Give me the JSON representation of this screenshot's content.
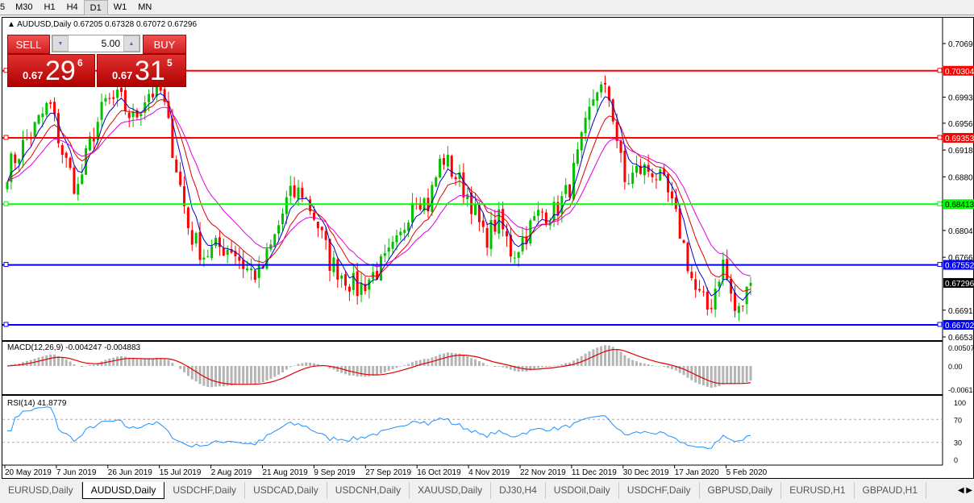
{
  "timeframes": [
    "5",
    "M30",
    "H1",
    "H4",
    "D1",
    "W1",
    "MN"
  ],
  "active_timeframe": "D1",
  "chart": {
    "header": "AUDUSD,Daily  0.67205 0.67328 0.67072 0.67296",
    "trade": {
      "sell_label": "SELL",
      "buy_label": "BUY",
      "lot": "5.00",
      "sell_prefix": "0.67",
      "sell_big": "29",
      "sell_sup": "6",
      "buy_prefix": "0.67",
      "buy_big": "31",
      "buy_sup": "5"
    },
    "price_axis": [
      "0.70690",
      "0.69930",
      "0.69560",
      "0.69180",
      "0.68800",
      "0.68040",
      "0.67660",
      "0.66910",
      "0.66530"
    ],
    "levels": [
      {
        "price": "0.70304",
        "color": "#ff0000"
      },
      {
        "price": "0.69353",
        "color": "#ff0000"
      },
      {
        "price": "0.68413",
        "color": "#00ff00"
      },
      {
        "price": "0.67552",
        "color": "#0000ff"
      },
      {
        "price": "0.66702",
        "color": "#0000ff"
      }
    ],
    "current_price": "0.67296",
    "closes": [
      0.689,
      0.692,
      0.695,
      0.6985,
      0.691,
      0.686,
      0.6935,
      0.6985,
      0.699,
      0.696,
      0.7,
      0.7,
      0.69,
      0.68,
      0.677,
      0.678,
      0.678,
      0.675,
      0.674,
      0.679,
      0.685,
      0.686,
      0.682,
      0.676,
      0.674,
      0.672,
      0.674,
      0.676,
      0.679,
      0.686,
      0.684,
      0.691,
      0.688,
      0.685,
      0.679,
      0.682,
      0.677,
      0.68,
      0.683,
      0.683,
      0.686,
      0.693,
      0.701,
      0.699,
      0.687,
      0.689,
      0.689,
      0.686,
      0.68,
      0.672,
      0.669,
      0.676,
      0.668,
      0.67296
    ],
    "up_color": "#00c000",
    "down_color": "#ff0000",
    "macd": {
      "label": "MACD(12,26,9) -0.004247 -0.004883",
      "axis": [
        "0.005076",
        "0.00",
        "-0.006148"
      ]
    },
    "rsi": {
      "label": "RSI(14) 41.8779",
      "axis": [
        "100",
        "70",
        "30",
        "0"
      ]
    },
    "dates": [
      "20 May 2019",
      "7 Jun 2019",
      "26 Jun 2019",
      "15 Jul 2019",
      "2 Aug 2019",
      "21 Aug 2019",
      "9 Sep 2019",
      "27 Sep 2019",
      "16 Oct 2019",
      "4 Nov 2019",
      "22 Nov 2019",
      "11 Dec 2019",
      "30 Dec 2019",
      "17 Jan 2020",
      "5 Feb 2020"
    ]
  },
  "tabs": [
    "EURUSD,Daily",
    "AUDUSD,Daily",
    "USDCHF,Daily",
    "USDCAD,Daily",
    "USDCNH,Daily",
    "XAUUSD,Daily",
    "DJ30,H4",
    "USDOil,Daily",
    "USDCHF,Daily",
    "GBPUSD,Daily",
    "EURUSD,H1",
    "GBPAUD,H1"
  ],
  "active_tab": 1
}
